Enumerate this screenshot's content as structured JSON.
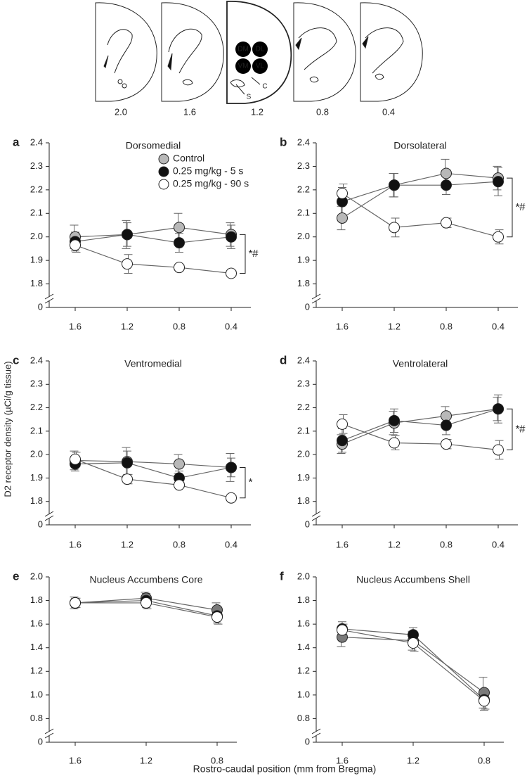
{
  "atlas": {
    "sections": [
      "2.0",
      "1.6",
      "1.2",
      "0.8",
      "0.4"
    ],
    "regions": [
      "DM",
      "DL",
      "VM",
      "VL",
      "C",
      "S"
    ]
  },
  "y_label": "D2 receptor density (µCi/g tissue)",
  "x_label": "Rostro-caudal position (mm from Bregma)",
  "chart_data": [
    {
      "type": "line",
      "panel": "a",
      "title": "Dorsomedial",
      "categories": [
        "1.6",
        "1.2",
        "0.8",
        "0.4"
      ],
      "ylim": [
        1.7,
        2.4
      ],
      "yticks": [
        0,
        1.8,
        1.9,
        {
          "value": 2,
          "label": "2.0"
        },
        2.1,
        2.2,
        2.3,
        2.4
      ],
      "axis_break": true,
      "annotation": "*#",
      "series": [
        {
          "name": "Control",
          "color": "#b8b8b8",
          "values": [
            2.0,
            2.01,
            2.04,
            2.01
          ],
          "errors": [
            0.05,
            0.06,
            0.06,
            0.05
          ]
        },
        {
          "name": "0.25 mg/kg - 5 s",
          "color": "#111111",
          "values": [
            1.98,
            2.01,
            1.975,
            2.0
          ],
          "errors": [
            0.04,
            0.05,
            0.04,
            0.05
          ]
        },
        {
          "name": "0.25 mg/kg - 90 s",
          "color": "#ffffff",
          "values": [
            1.965,
            1.885,
            1.87,
            1.845
          ],
          "errors": [
            0.03,
            0.04,
            0.01,
            0.01
          ]
        }
      ]
    },
    {
      "type": "line",
      "panel": "b",
      "title": "Dorsolateral",
      "categories": [
        "1.6",
        "1.2",
        "0.8",
        "0.4"
      ],
      "ylim": [
        1.7,
        2.4
      ],
      "yticks": [
        0,
        1.8,
        1.9,
        {
          "value": 2,
          "label": "2.0"
        },
        2.1,
        2.2,
        2.3,
        2.4
      ],
      "axis_break": true,
      "annotation": "*#",
      "series": [
        {
          "color": "#b8b8b8",
          "values": [
            2.08,
            2.22,
            2.27,
            2.25
          ],
          "errors": [
            0.05,
            0.05,
            0.06,
            0.05
          ]
        },
        {
          "color": "#111111",
          "values": [
            2.15,
            2.22,
            2.22,
            2.235
          ],
          "errors": [
            0.06,
            0.05,
            0.04,
            0.06
          ]
        },
        {
          "color": "#ffffff",
          "values": [
            2.185,
            2.04,
            2.06,
            2.0
          ],
          "errors": [
            0.04,
            0.04,
            0.02,
            0.03
          ]
        }
      ]
    },
    {
      "type": "line",
      "panel": "c",
      "title": "Ventromedial",
      "categories": [
        "1.6",
        "1.2",
        "0.8",
        "0.4"
      ],
      "ylim": [
        1.7,
        2.4
      ],
      "yticks": [
        0,
        1.8,
        1.9,
        {
          "value": 2,
          "label": "2.0"
        },
        2.1,
        2.2,
        2.3,
        2.4
      ],
      "axis_break": true,
      "annotation": "*",
      "series": [
        {
          "color": "#b8b8b8",
          "values": [
            1.975,
            1.97,
            1.96,
            1.945
          ],
          "errors": [
            0.04,
            0.06,
            0.04,
            0.06
          ]
        },
        {
          "color": "#111111",
          "values": [
            1.96,
            1.965,
            1.9,
            1.945
          ],
          "errors": [
            0.03,
            0.05,
            0.03,
            0.04
          ]
        },
        {
          "color": "#ffffff",
          "values": [
            1.98,
            1.895,
            1.87,
            1.815
          ],
          "errors": [
            0.03,
            0.02,
            0.01,
            0.01
          ]
        }
      ]
    },
    {
      "type": "line",
      "panel": "d",
      "title": "Ventrolateral",
      "categories": [
        "1.6",
        "1.2",
        "0.8",
        "0.4"
      ],
      "ylim": [
        1.7,
        2.4
      ],
      "yticks": [
        0,
        1.8,
        1.9,
        {
          "value": 2,
          "label": "2.0"
        },
        2.1,
        2.2,
        2.3,
        2.4
      ],
      "axis_break": true,
      "annotation": "*#",
      "series": [
        {
          "color": "#b8b8b8",
          "values": [
            2.045,
            2.135,
            2.165,
            2.195
          ],
          "errors": [
            0.04,
            0.05,
            0.04,
            0.05
          ]
        },
        {
          "color": "#111111",
          "values": [
            2.06,
            2.145,
            2.125,
            2.195
          ],
          "errors": [
            0.05,
            0.05,
            0.04,
            0.06
          ]
        },
        {
          "color": "#ffffff",
          "values": [
            2.13,
            2.05,
            2.045,
            2.02
          ],
          "errors": [
            0.04,
            0.03,
            0.02,
            0.04
          ]
        }
      ]
    },
    {
      "type": "line",
      "panel": "e",
      "title": "Nucleus Accumbens Core",
      "categories": [
        "1.6",
        "1.2",
        "0.8"
      ],
      "ylim": [
        0.6,
        2.0
      ],
      "yticks": [
        0,
        0.8,
        {
          "value": 1,
          "label": "1.0"
        },
        1.2,
        1.4,
        1.6,
        1.8,
        {
          "value": 2,
          "label": "2.0"
        }
      ],
      "axis_break": true,
      "series": [
        {
          "color": "#7a7a7a",
          "values": [
            1.78,
            1.82,
            1.72
          ],
          "errors": [
            0.05,
            0.05,
            0.06
          ]
        },
        {
          "color": "#111111",
          "values": [
            1.78,
            1.8,
            1.67
          ],
          "errors": [
            0.04,
            0.06,
            0.06
          ]
        },
        {
          "color": "#ffffff",
          "values": [
            1.78,
            1.78,
            1.66
          ],
          "errors": [
            0.04,
            0.05,
            0.06
          ]
        }
      ]
    },
    {
      "type": "line",
      "panel": "f",
      "title": "Nucleus Accumbens Shell",
      "categories": [
        "1.6",
        "1.2",
        "0.8"
      ],
      "ylim": [
        0.6,
        2.0
      ],
      "yticks": [
        0,
        0.8,
        {
          "value": 1,
          "label": "1.0"
        },
        1.2,
        1.4,
        1.6,
        1.8,
        {
          "value": 2,
          "label": "2.0"
        }
      ],
      "axis_break": true,
      "series": [
        {
          "color": "#7a7a7a",
          "values": [
            1.49,
            1.46,
            1.02
          ],
          "errors": [
            0.08,
            0.08,
            0.13
          ]
        },
        {
          "color": "#111111",
          "values": [
            1.56,
            1.51,
            0.96
          ],
          "errors": [
            0.06,
            0.06,
            0.09
          ]
        },
        {
          "color": "#ffffff",
          "values": [
            1.55,
            1.44,
            0.95
          ],
          "errors": [
            0.05,
            0.07,
            0.07
          ]
        }
      ]
    }
  ]
}
